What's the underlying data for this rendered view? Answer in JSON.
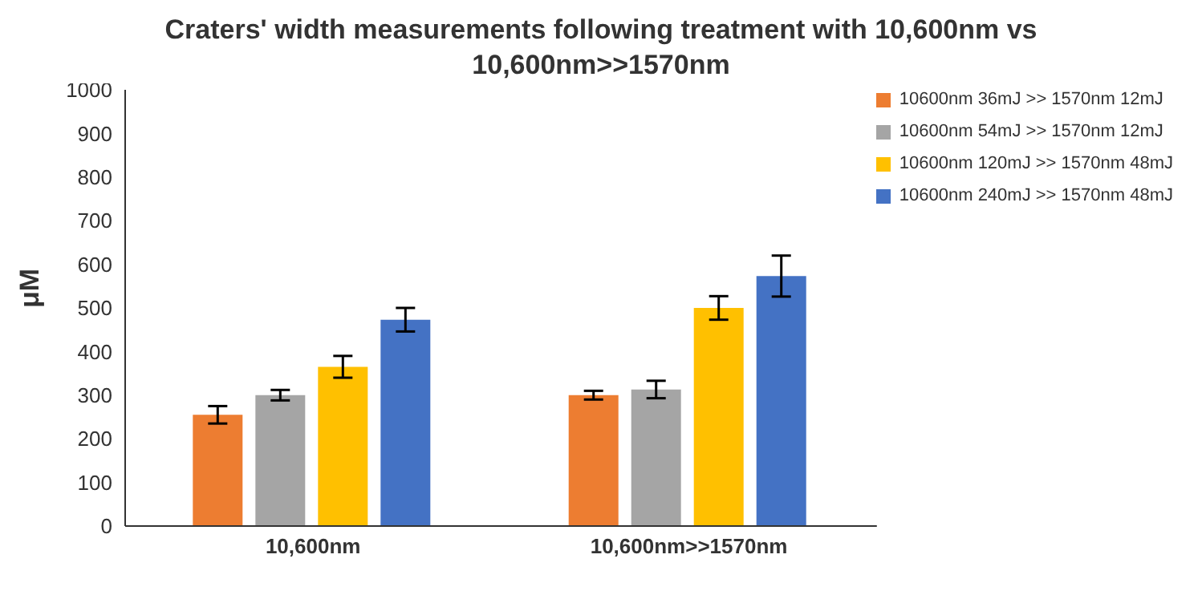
{
  "chart_data": {
    "type": "bar",
    "title": "Craters' width measurements following treatment with 10,600nm vs 10,600nm>>1570nm",
    "ylabel": "μM",
    "categories": [
      "10,600nm",
      "10,600nm>>1570nm"
    ],
    "series": [
      {
        "name": "10600nm 36mJ >> 1570nm 12mJ",
        "color": "#ed7d31",
        "values": [
          255,
          300
        ],
        "errors": [
          20,
          10
        ]
      },
      {
        "name": "10600nm 54mJ >> 1570nm 12mJ",
        "color": "#a5a5a5",
        "values": [
          300,
          313
        ],
        "errors": [
          12,
          20
        ]
      },
      {
        "name": "10600nm 120mJ >> 1570nm 48mJ",
        "color": "#ffc000",
        "values": [
          365,
          500
        ],
        "errors": [
          25,
          27
        ]
      },
      {
        "name": "10600nm 240mJ >> 1570nm 48mJ",
        "color": "#4472c4",
        "values": [
          473,
          573
        ],
        "errors": [
          27,
          47
        ]
      }
    ],
    "ylim": [
      0,
      1000
    ],
    "yticks": [
      0,
      100,
      200,
      300,
      400,
      500,
      600,
      700,
      800,
      900,
      1000
    ],
    "grid": false,
    "legend": "top right"
  }
}
